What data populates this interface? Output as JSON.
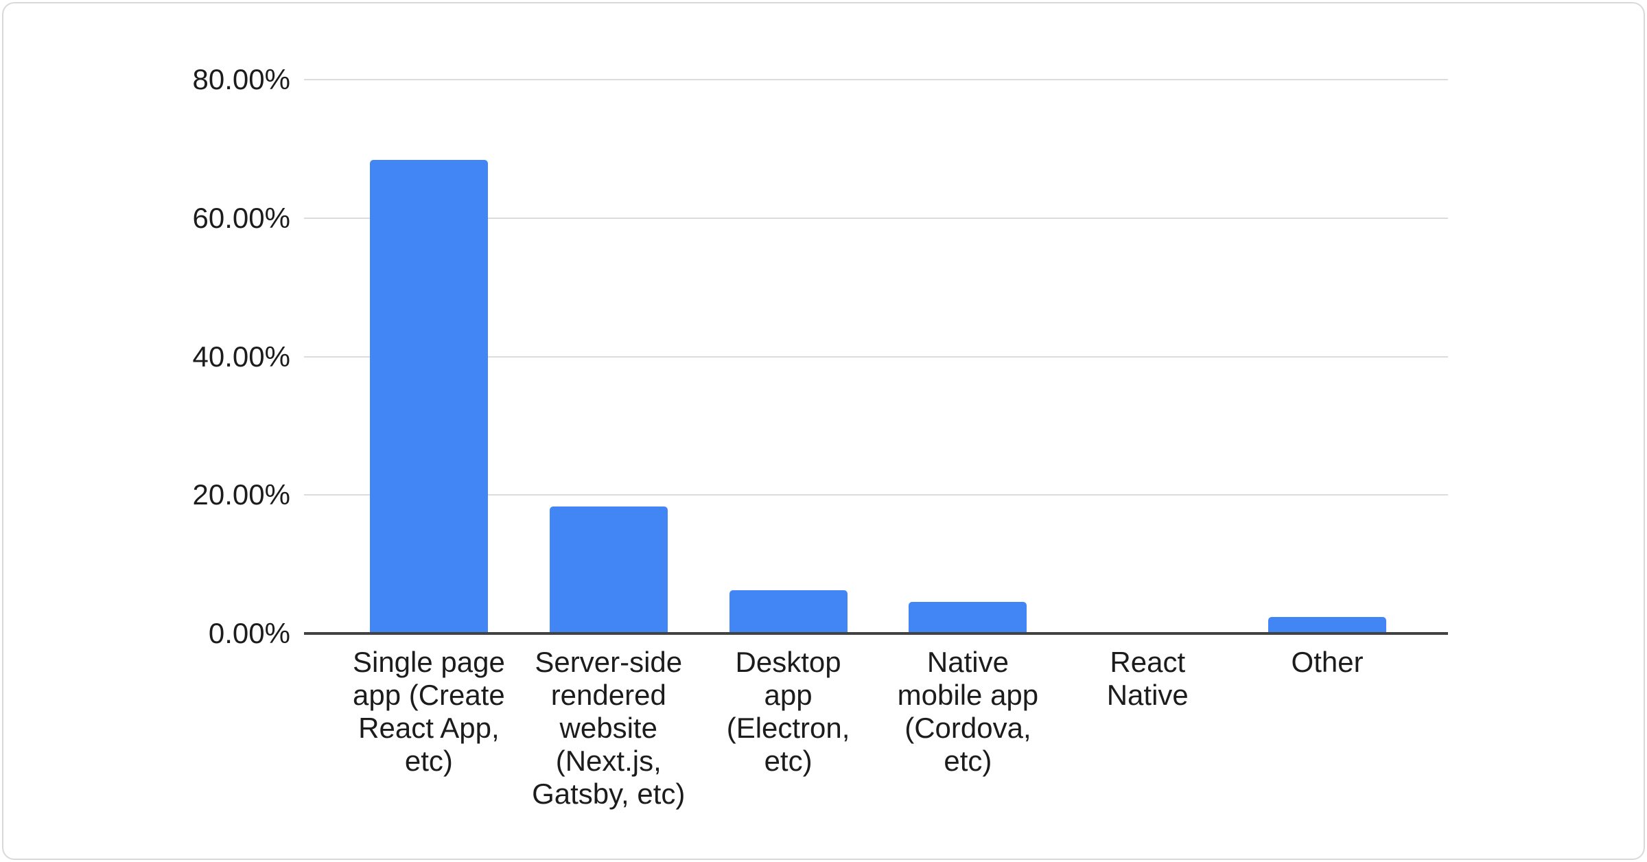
{
  "card": {
    "background": "#ffffff",
    "border_color": "#d9d9d9"
  },
  "chart_data": {
    "type": "bar",
    "title": "",
    "categories": [
      "Single page app (Create React App, etc)",
      "Server-side rendered website (Next.js, Gatsby, etc)",
      "Desktop app (Electron, etc)",
      "Native mobile app (Cordova, etc)",
      "React Native",
      "Other"
    ],
    "category_lines": [
      [
        "Single page",
        "app (Create",
        "React App,",
        "etc)"
      ],
      [
        "Server-side",
        "rendered",
        "website",
        "(Next.js,",
        "Gatsby, etc)"
      ],
      [
        "Desktop",
        "app",
        "(Electron,",
        "etc)"
      ],
      [
        "Native",
        "mobile app",
        "(Cordova,",
        "etc)"
      ],
      [
        "React",
        "Native"
      ],
      [
        "Other"
      ]
    ],
    "values": [
      68.4,
      18.3,
      6.2,
      4.6,
      0,
      2.4
    ],
    "y_ticks": [
      {
        "value": 0,
        "label": "0.00%"
      },
      {
        "value": 20,
        "label": "20.00%"
      },
      {
        "value": 40,
        "label": "40.00%"
      },
      {
        "value": 60,
        "label": "60.00%"
      },
      {
        "value": 80,
        "label": "80.00%"
      }
    ],
    "ylim": [
      0,
      80
    ],
    "xlabel": "",
    "ylabel": "",
    "legend": "none",
    "grid": "horizontal-only",
    "bar_color": "#4285f4",
    "gridline_color": "#dcdcdc",
    "axis_line_color": "#424242",
    "text_color": "#1c1c1c"
  }
}
